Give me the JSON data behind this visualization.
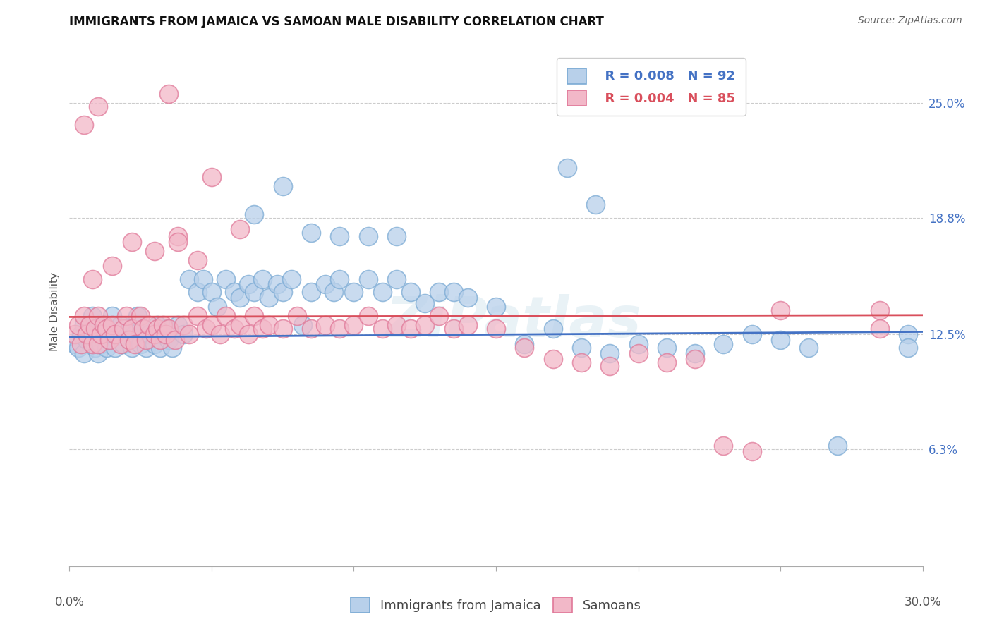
{
  "title": "IMMIGRANTS FROM JAMAICA VS SAMOAN MALE DISABILITY CORRELATION CHART",
  "source": "Source: ZipAtlas.com",
  "ylabel": "Male Disability",
  "ytick_labels": [
    "6.3%",
    "12.5%",
    "18.8%",
    "25.0%"
  ],
  "ytick_values": [
    0.063,
    0.125,
    0.188,
    0.25
  ],
  "xtick_positions": [
    0.0,
    0.05,
    0.1,
    0.15,
    0.2,
    0.25,
    0.3
  ],
  "xmin": 0.0,
  "xmax": 0.3,
  "ymin": 0.0,
  "ymax": 0.275,
  "legend_blue_r": "R = 0.008",
  "legend_blue_n": "N = 92",
  "legend_pink_r": "R = 0.004",
  "legend_pink_n": "N = 85",
  "legend_label_blue": "Immigrants from Jamaica",
  "legend_label_pink": "Samoans",
  "blue_fill": "#b8d0ea",
  "blue_edge": "#7aaad4",
  "pink_fill": "#f2b8c8",
  "pink_edge": "#e07898",
  "blue_line_color": "#4472c4",
  "pink_line_color": "#d94f5c",
  "blue_trend_intercept": 0.1235,
  "blue_trend_slope": 0.003,
  "pink_trend_intercept": 0.1345,
  "pink_trend_slope": 0.001,
  "watermark": "ZiPatlas",
  "title_fontsize": 12,
  "axis_label_fontsize": 11,
  "tick_fontsize": 12,
  "legend_fontsize": 13,
  "blue_x": [
    0.002,
    0.003,
    0.004,
    0.005,
    0.005,
    0.006,
    0.007,
    0.008,
    0.008,
    0.009,
    0.01,
    0.01,
    0.01,
    0.011,
    0.012,
    0.013,
    0.014,
    0.015,
    0.016,
    0.017,
    0.018,
    0.019,
    0.02,
    0.021,
    0.022,
    0.023,
    0.024,
    0.025,
    0.026,
    0.027,
    0.028,
    0.03,
    0.031,
    0.032,
    0.033,
    0.034,
    0.035,
    0.036,
    0.038,
    0.04,
    0.042,
    0.045,
    0.047,
    0.05,
    0.052,
    0.055,
    0.058,
    0.06,
    0.063,
    0.065,
    0.068,
    0.07,
    0.073,
    0.075,
    0.078,
    0.082,
    0.085,
    0.09,
    0.093,
    0.095,
    0.1,
    0.105,
    0.11,
    0.115,
    0.12,
    0.125,
    0.13,
    0.135,
    0.14,
    0.15,
    0.16,
    0.17,
    0.18,
    0.19,
    0.2,
    0.21,
    0.22,
    0.23,
    0.24,
    0.25,
    0.26,
    0.27,
    0.065,
    0.075,
    0.085,
    0.095,
    0.105,
    0.115,
    0.175,
    0.185,
    0.295,
    0.295
  ],
  "blue_y": [
    0.12,
    0.118,
    0.125,
    0.13,
    0.115,
    0.122,
    0.128,
    0.12,
    0.135,
    0.118,
    0.125,
    0.13,
    0.115,
    0.12,
    0.128,
    0.118,
    0.122,
    0.135,
    0.118,
    0.125,
    0.13,
    0.12,
    0.128,
    0.122,
    0.118,
    0.125,
    0.135,
    0.12,
    0.128,
    0.118,
    0.125,
    0.12,
    0.13,
    0.118,
    0.125,
    0.128,
    0.122,
    0.118,
    0.13,
    0.125,
    0.155,
    0.148,
    0.155,
    0.148,
    0.14,
    0.155,
    0.148,
    0.145,
    0.152,
    0.148,
    0.155,
    0.145,
    0.152,
    0.148,
    0.155,
    0.13,
    0.148,
    0.152,
    0.148,
    0.155,
    0.148,
    0.155,
    0.148,
    0.155,
    0.148,
    0.142,
    0.148,
    0.148,
    0.145,
    0.14,
    0.12,
    0.128,
    0.118,
    0.115,
    0.12,
    0.118,
    0.115,
    0.12,
    0.125,
    0.122,
    0.118,
    0.065,
    0.19,
    0.205,
    0.18,
    0.178,
    0.178,
    0.178,
    0.215,
    0.195,
    0.125,
    0.118
  ],
  "pink_x": [
    0.002,
    0.003,
    0.004,
    0.005,
    0.006,
    0.007,
    0.008,
    0.009,
    0.01,
    0.01,
    0.011,
    0.012,
    0.013,
    0.014,
    0.015,
    0.016,
    0.018,
    0.019,
    0.02,
    0.021,
    0.022,
    0.023,
    0.025,
    0.026,
    0.027,
    0.028,
    0.03,
    0.031,
    0.032,
    0.033,
    0.034,
    0.035,
    0.037,
    0.04,
    0.042,
    0.045,
    0.048,
    0.05,
    0.053,
    0.055,
    0.058,
    0.06,
    0.063,
    0.065,
    0.068,
    0.07,
    0.075,
    0.08,
    0.085,
    0.09,
    0.095,
    0.1,
    0.105,
    0.11,
    0.115,
    0.12,
    0.125,
    0.13,
    0.135,
    0.14,
    0.15,
    0.16,
    0.17,
    0.18,
    0.19,
    0.2,
    0.21,
    0.22,
    0.23,
    0.24,
    0.25,
    0.008,
    0.015,
    0.022,
    0.03,
    0.038,
    0.045,
    0.05,
    0.06,
    0.285,
    0.285,
    0.005,
    0.01,
    0.035,
    0.038
  ],
  "pink_y": [
    0.125,
    0.13,
    0.12,
    0.135,
    0.125,
    0.13,
    0.12,
    0.128,
    0.135,
    0.12,
    0.125,
    0.13,
    0.128,
    0.122,
    0.13,
    0.125,
    0.12,
    0.128,
    0.135,
    0.122,
    0.128,
    0.12,
    0.135,
    0.128,
    0.122,
    0.13,
    0.125,
    0.128,
    0.122,
    0.13,
    0.125,
    0.128,
    0.122,
    0.13,
    0.125,
    0.135,
    0.128,
    0.13,
    0.125,
    0.135,
    0.128,
    0.13,
    0.125,
    0.135,
    0.128,
    0.13,
    0.128,
    0.135,
    0.128,
    0.13,
    0.128,
    0.13,
    0.135,
    0.128,
    0.13,
    0.128,
    0.13,
    0.135,
    0.128,
    0.13,
    0.128,
    0.118,
    0.112,
    0.11,
    0.108,
    0.115,
    0.11,
    0.112,
    0.065,
    0.062,
    0.138,
    0.155,
    0.162,
    0.175,
    0.17,
    0.178,
    0.165,
    0.21,
    0.182,
    0.138,
    0.128,
    0.238,
    0.248,
    0.255,
    0.175
  ]
}
